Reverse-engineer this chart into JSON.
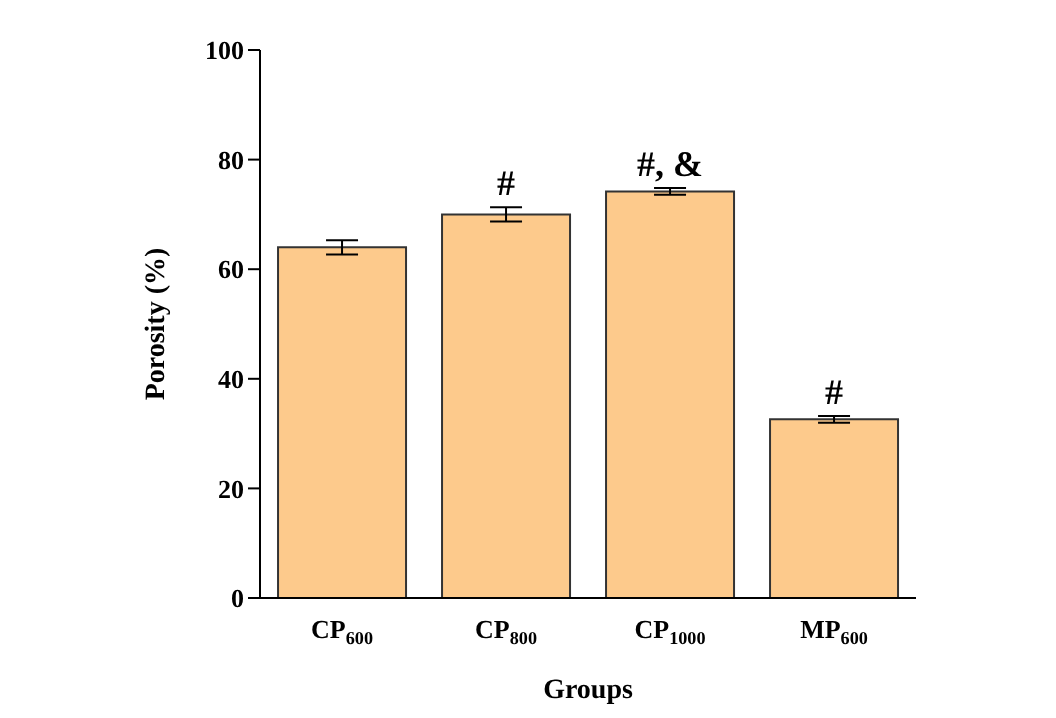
{
  "chart_data": {
    "type": "bar",
    "xlabel": "Groups",
    "ylabel": "Porosity (%)",
    "categories": [
      "CP$_{600}$",
      "CP$_{800}$",
      "CP$_{1000}$",
      "MP$_{600}$"
    ],
    "values": [
      64,
      70,
      74.2,
      32.6
    ],
    "errors": [
      1.3,
      1.3,
      0.6,
      0.6
    ],
    "color": "#fdca8c",
    "ylim": [
      0,
      100
    ],
    "yticks": [
      0,
      20,
      40,
      60,
      80,
      100
    ],
    "grid": false,
    "legend": false,
    "annotations": [
      {
        "text": "#",
        "x": "CP$_{800}$",
        "y": 71.3
      },
      {
        "text": "#, &",
        "x": "CP$_{1000}$",
        "y": 74.8
      },
      {
        "text": "#",
        "x": "MP$_{600}$",
        "y": 33.2
      }
    ]
  }
}
